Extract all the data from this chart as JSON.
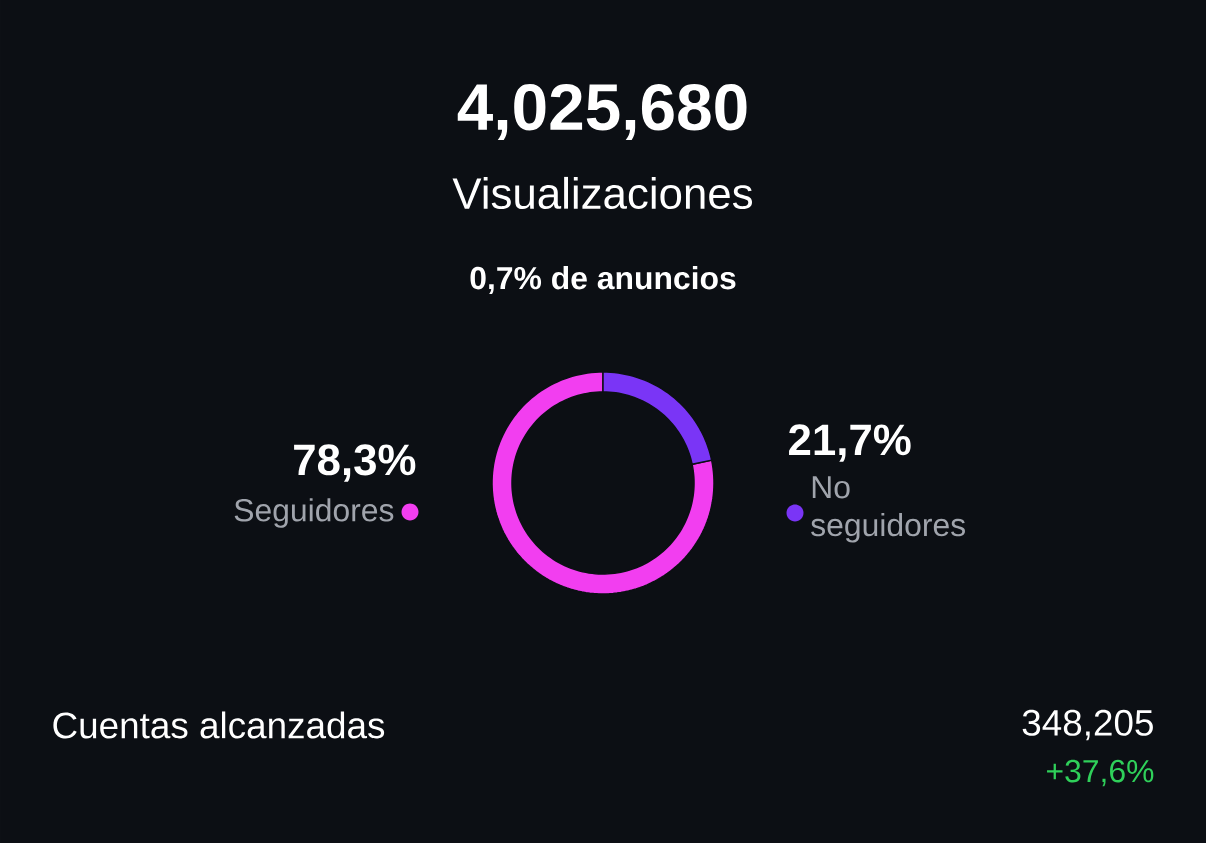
{
  "chart_data": {
    "type": "donut",
    "title": "4,025,680",
    "subtitle": "Visualizaciones",
    "categories": [
      "Seguidores",
      "No seguidores"
    ],
    "values": [
      78.3,
      21.7
    ],
    "value_labels": [
      "78,3%",
      "21,7%"
    ],
    "colors": [
      "#f23ef0",
      "#7a35f6"
    ],
    "annotations": [
      "0,7% de anuncios",
      "Cuentas alcanzadas",
      "348,205",
      "+37,6%"
    ]
  }
}
